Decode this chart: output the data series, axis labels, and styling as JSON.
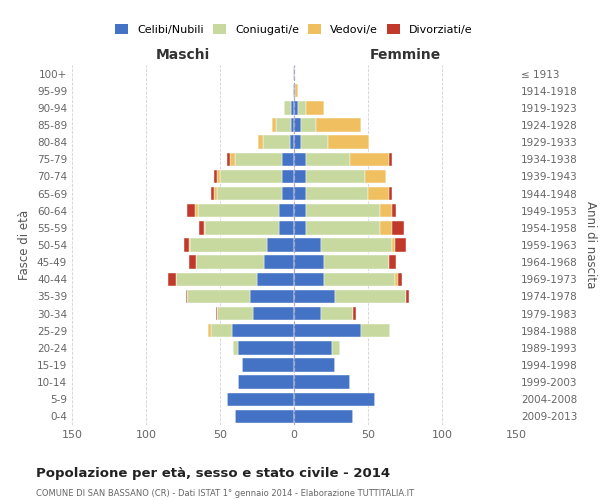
{
  "age_groups": [
    "0-4",
    "5-9",
    "10-14",
    "15-19",
    "20-24",
    "25-29",
    "30-34",
    "35-39",
    "40-44",
    "45-49",
    "50-54",
    "55-59",
    "60-64",
    "65-69",
    "70-74",
    "75-79",
    "80-84",
    "85-89",
    "90-94",
    "95-99",
    "100+"
  ],
  "birth_years": [
    "2009-2013",
    "2004-2008",
    "1999-2003",
    "1994-1998",
    "1989-1993",
    "1984-1988",
    "1979-1983",
    "1974-1978",
    "1969-1973",
    "1964-1968",
    "1959-1963",
    "1954-1958",
    "1949-1953",
    "1944-1948",
    "1939-1943",
    "1934-1938",
    "1929-1933",
    "1924-1928",
    "1919-1923",
    "1914-1918",
    "≤ 1913"
  ],
  "males": {
    "celibi": [
      40,
      45,
      38,
      35,
      38,
      42,
      28,
      30,
      25,
      20,
      18,
      10,
      10,
      8,
      8,
      8,
      3,
      2,
      2,
      1,
      1
    ],
    "coniugati": [
      0,
      0,
      0,
      0,
      3,
      14,
      24,
      42,
      55,
      46,
      52,
      50,
      55,
      44,
      42,
      32,
      18,
      10,
      5,
      0,
      0
    ],
    "vedovi": [
      0,
      0,
      0,
      0,
      0,
      2,
      0,
      0,
      0,
      0,
      1,
      1,
      2,
      2,
      2,
      3,
      3,
      3,
      0,
      0,
      0
    ],
    "divorziati": [
      0,
      0,
      0,
      0,
      0,
      0,
      1,
      1,
      5,
      5,
      3,
      3,
      5,
      2,
      2,
      2,
      0,
      0,
      0,
      0,
      0
    ]
  },
  "females": {
    "nubili": [
      40,
      55,
      38,
      28,
      26,
      45,
      18,
      28,
      20,
      20,
      18,
      8,
      8,
      8,
      8,
      8,
      5,
      5,
      3,
      1,
      0
    ],
    "coniugate": [
      0,
      0,
      0,
      0,
      5,
      20,
      22,
      48,
      48,
      44,
      48,
      50,
      50,
      42,
      40,
      30,
      18,
      10,
      5,
      0,
      0
    ],
    "vedove": [
      0,
      0,
      0,
      0,
      0,
      0,
      0,
      0,
      2,
      0,
      2,
      8,
      8,
      14,
      14,
      26,
      28,
      30,
      12,
      2,
      1
    ],
    "divorziate": [
      0,
      0,
      0,
      0,
      0,
      0,
      2,
      2,
      3,
      5,
      8,
      8,
      3,
      2,
      0,
      2,
      0,
      0,
      0,
      0,
      0
    ]
  },
  "colors": {
    "celibi": "#4472C4",
    "coniugati": "#C8D9A0",
    "vedovi": "#F0C060",
    "divorziati": "#C0392B"
  },
  "xlim": 150,
  "title": "Popolazione per età, sesso e stato civile - 2014",
  "subtitle": "COMUNE DI SAN BASSANO (CR) - Dati ISTAT 1° gennaio 2014 - Elaborazione TUTTITALIA.IT",
  "ylabel_left": "Fasce di età",
  "ylabel_right": "Anni di nascita",
  "xlabel_left": "Maschi",
  "xlabel_right": "Femmine",
  "background_color": "#ffffff",
  "grid_color": "#cccccc"
}
